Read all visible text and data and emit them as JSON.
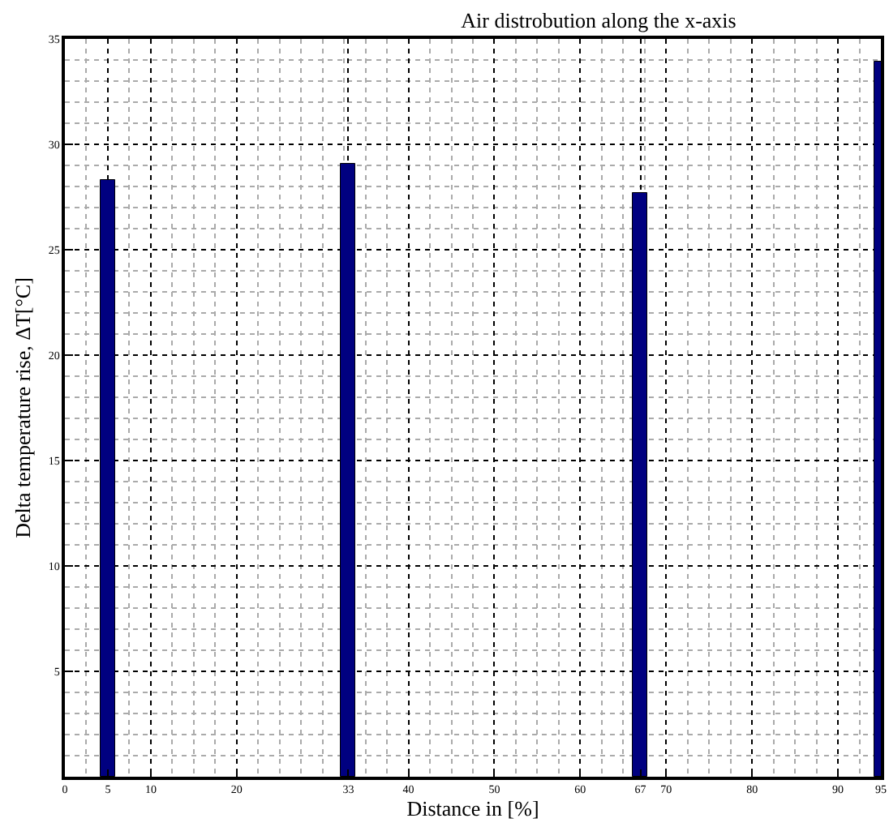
{
  "chart_data": {
    "type": "bar",
    "title": "Air distrobution along the x-axis",
    "xlabel": "Distance in [%]",
    "ylabel": "Delta temperature rise, ΔT[°C]",
    "x": [
      5,
      33,
      67,
      95
    ],
    "series": [
      {
        "color": "#000080",
        "values": [
          28.3,
          29.1,
          27.7,
          33.9
        ]
      }
    ],
    "xlim": [
      0,
      95
    ],
    "xticks": [
      0,
      5,
      10,
      20,
      33,
      40,
      50,
      60,
      67,
      70,
      80,
      90,
      95
    ],
    "ylim": [
      0,
      35
    ],
    "yticks": [
      5,
      10,
      15,
      20,
      25,
      30,
      35
    ],
    "grid": true
  }
}
